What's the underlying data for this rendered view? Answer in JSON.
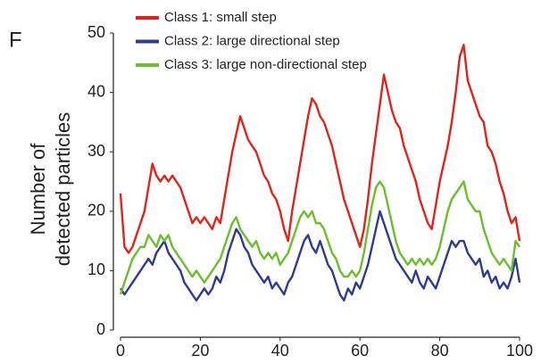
{
  "chart_data": {
    "type": "line",
    "panel_label": "F",
    "ylabel": [
      "Number of",
      "detected particles"
    ],
    "x": [
      0,
      1,
      2,
      3,
      4,
      5,
      6,
      7,
      8,
      9,
      10,
      11,
      12,
      13,
      14,
      15,
      16,
      17,
      18,
      19,
      20,
      21,
      22,
      23,
      24,
      25,
      26,
      27,
      28,
      29,
      30,
      31,
      32,
      33,
      34,
      35,
      36,
      37,
      38,
      39,
      40,
      41,
      42,
      43,
      44,
      45,
      46,
      47,
      48,
      49,
      50,
      51,
      52,
      53,
      54,
      55,
      56,
      57,
      58,
      59,
      60,
      61,
      62,
      63,
      64,
      65,
      66,
      67,
      68,
      69,
      70,
      71,
      72,
      73,
      74,
      75,
      76,
      77,
      78,
      79,
      80,
      81,
      82,
      83,
      84,
      85,
      86,
      87,
      88,
      89,
      90,
      91,
      92,
      93,
      94,
      95,
      96,
      97,
      98,
      99,
      100
    ],
    "series": [
      {
        "name": "Class 1: small step",
        "color": "#e2231a",
        "values": [
          23,
          14,
          13,
          14,
          16,
          18,
          20,
          24,
          28,
          26,
          25,
          26,
          25,
          26,
          25,
          24,
          22,
          20,
          18,
          19,
          18,
          19,
          18,
          17,
          19,
          18,
          22,
          26,
          30,
          33,
          36,
          34,
          32,
          31,
          30,
          28,
          26,
          25,
          23,
          22,
          20,
          17,
          15,
          20,
          24,
          28,
          32,
          36,
          39,
          38,
          36,
          35,
          33,
          31,
          28,
          25,
          22,
          20,
          18,
          16,
          14,
          17,
          22,
          28,
          33,
          38,
          43,
          40,
          37,
          35,
          34,
          31,
          29,
          27,
          25,
          22,
          20,
          18,
          17,
          21,
          25,
          28,
          31,
          35,
          40,
          46,
          48,
          42,
          40,
          38,
          36,
          35,
          31,
          30,
          28,
          25,
          23,
          20,
          18,
          19,
          15
        ]
      },
      {
        "name": "Class 2: large directional step",
        "color": "#2e3a93",
        "values": [
          7,
          6,
          7,
          8,
          9,
          10,
          11,
          12,
          11,
          13,
          14,
          15,
          13,
          12,
          11,
          10,
          8,
          7,
          6,
          5,
          6,
          7,
          6,
          7,
          9,
          8,
          10,
          13,
          15,
          17,
          16,
          14,
          13,
          11,
          10,
          9,
          8,
          9,
          7,
          8,
          7,
          6,
          8,
          9,
          11,
          13,
          15,
          16,
          14,
          13,
          15,
          13,
          11,
          10,
          8,
          6,
          5,
          7,
          6,
          8,
          7,
          9,
          11,
          14,
          17,
          20,
          18,
          16,
          14,
          12,
          11,
          10,
          9,
          8,
          10,
          8,
          7,
          9,
          8,
          7,
          9,
          11,
          13,
          15,
          14,
          15,
          15,
          13,
          12,
          11,
          12,
          9,
          10,
          8,
          9,
          7,
          8,
          7,
          9,
          12,
          8
        ]
      },
      {
        "name": "Class 3: large non-directional step",
        "color": "#6abf2a",
        "values": [
          6,
          8,
          10,
          12,
          13,
          14,
          14,
          16,
          15,
          14,
          16,
          15,
          16,
          14,
          13,
          12,
          11,
          10,
          9,
          10,
          9,
          8,
          9,
          10,
          11,
          12,
          14,
          16,
          18,
          19,
          17,
          16,
          15,
          14,
          15,
          13,
          12,
          13,
          12,
          13,
          11,
          12,
          13,
          15,
          17,
          19,
          20,
          19,
          20,
          18,
          18,
          17,
          15,
          13,
          12,
          10,
          9,
          9,
          10,
          9,
          10,
          13,
          17,
          21,
          24,
          25,
          24,
          21,
          18,
          15,
          13,
          12,
          11,
          12,
          11,
          12,
          11,
          12,
          11,
          12,
          14,
          17,
          20,
          22,
          23,
          24,
          25,
          22,
          21,
          20,
          20,
          17,
          15,
          13,
          12,
          11,
          12,
          11,
          10,
          15,
          14
        ]
      }
    ],
    "xlim": [
      0,
      100
    ],
    "xticks": [
      0,
      20,
      40,
      60,
      80,
      100
    ],
    "ylim": [
      0,
      50
    ],
    "yticks": [
      0,
      10,
      20,
      30,
      40,
      50
    ],
    "grid": false,
    "legend": "top-left"
  }
}
